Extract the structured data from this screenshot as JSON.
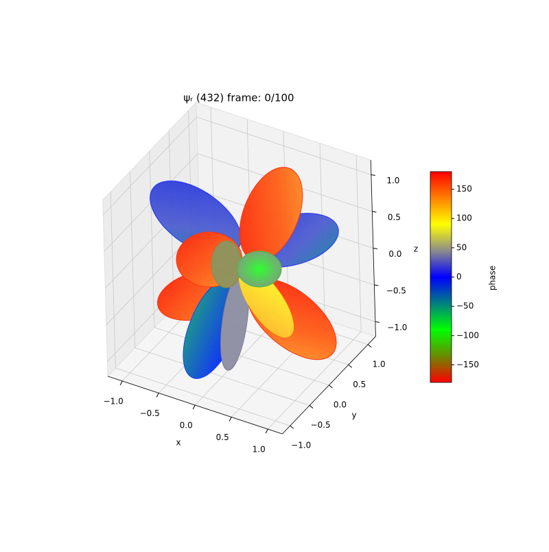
{
  "chart_data": {
    "type": "surface3d",
    "title": "ψᵣ (432) frame: 0/100",
    "xlabel": "x",
    "ylabel": "y",
    "zlabel": "z",
    "xlim": [
      -1.2,
      1.2
    ],
    "ylim": [
      -1.2,
      1.2
    ],
    "zlim": [
      -1.2,
      1.2
    ],
    "xticks": [
      {
        "value": -1,
        "label": "−1.0"
      },
      {
        "value": -0.5,
        "label": "−0.5"
      },
      {
        "value": 0,
        "label": "0.0"
      },
      {
        "value": 0.5,
        "label": "0.5"
      },
      {
        "value": 1,
        "label": "1.0"
      }
    ],
    "yticks": [
      {
        "value": -1,
        "label": "−1.0"
      },
      {
        "value": -0.5,
        "label": "−0.5"
      },
      {
        "value": 0,
        "label": "0.0"
      },
      {
        "value": 0.5,
        "label": "0.5"
      },
      {
        "value": 1,
        "label": "1.0"
      }
    ],
    "zticks": [
      {
        "value": -1,
        "label": "−1.0"
      },
      {
        "value": -0.5,
        "label": "−0.5"
      },
      {
        "value": 0,
        "label": "0.0"
      },
      {
        "value": 0.5,
        "label": "0.5"
      },
      {
        "value": 1,
        "label": "1.0"
      }
    ],
    "grid": true,
    "colorbar": {
      "label": "phase",
      "lim": [
        -180,
        180
      ],
      "ticks": [
        {
          "value": -150,
          "label": "−150"
        },
        {
          "value": -100,
          "label": "−100"
        },
        {
          "value": -50,
          "label": "−50"
        },
        0,
        50,
        100,
        150
      ],
      "colormap": [
        "#ff0000",
        "#6a8a00",
        "#00ff00",
        "#008080",
        "#0000ff",
        "#8c8c8c",
        "#ffff00",
        "#ff8000",
        "#ff0000"
      ]
    }
  }
}
